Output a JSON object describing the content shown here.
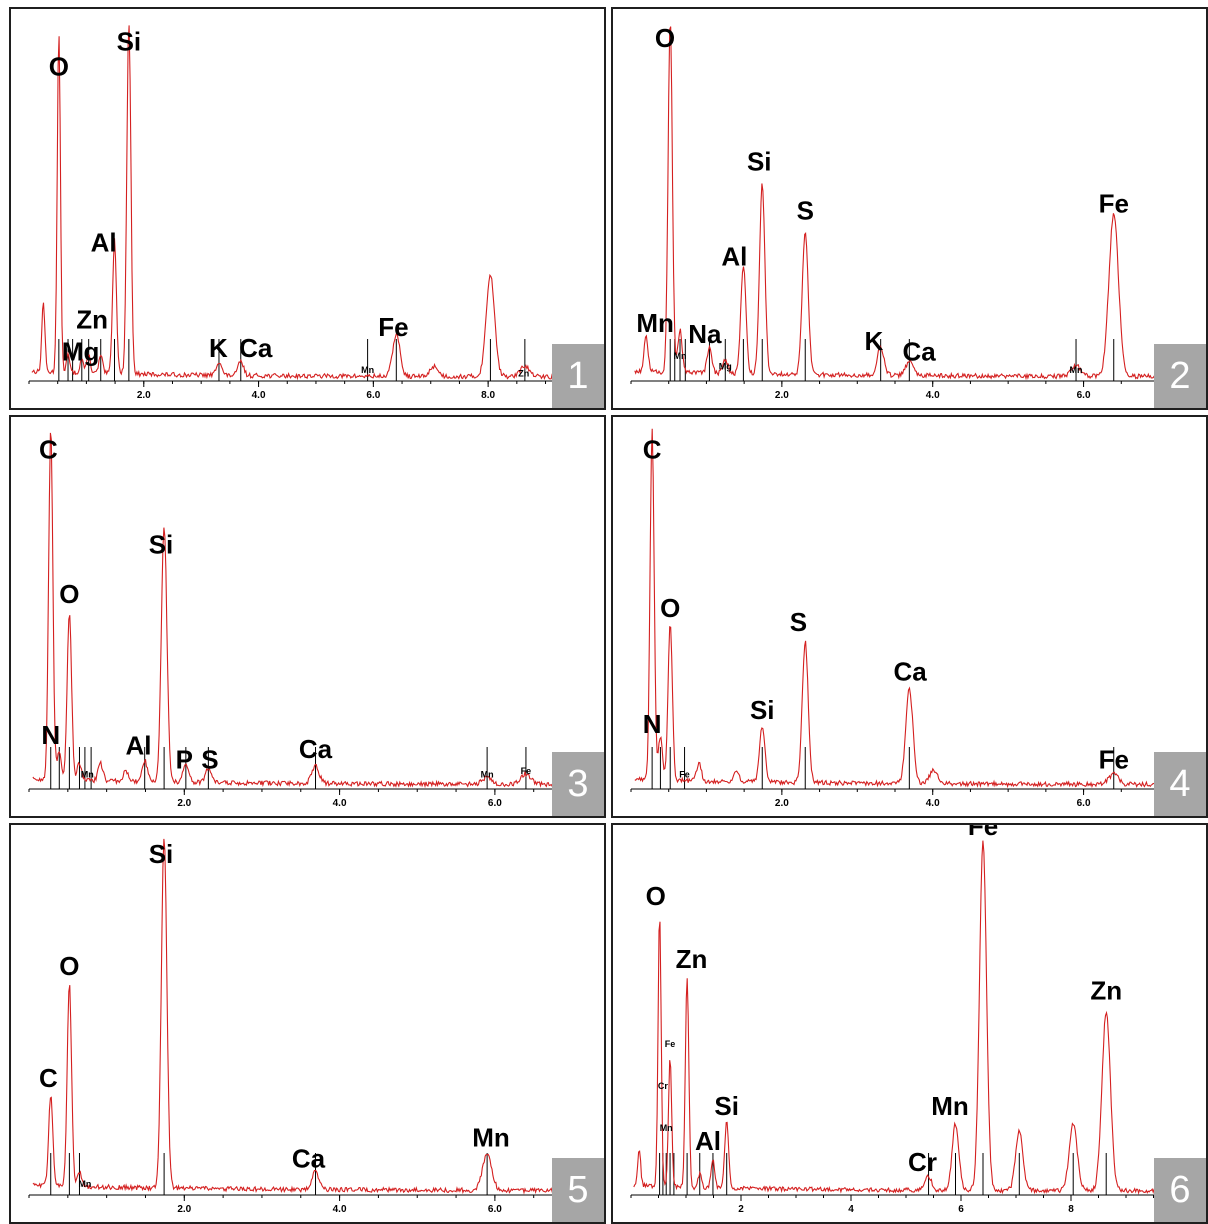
{
  "panels": [
    {
      "number": "1"
    },
    {
      "number": "2"
    },
    {
      "number": "3"
    },
    {
      "number": "4"
    },
    {
      "number": "5"
    },
    {
      "number": "6"
    }
  ],
  "colors": {
    "spectrum": "#d42020",
    "axis": "#000000",
    "marker": "#000000",
    "badge_bg": "#a6a6a6",
    "badge_text": "#ffffff",
    "border": "#1f1f1f"
  },
  "chart_data": [
    {
      "type": "line",
      "xlim": [
        0,
        9.2
      ],
      "ylim": [
        0,
        100
      ],
      "xticks": [
        2,
        4,
        6,
        8
      ],
      "xticklabels": [
        "2.0",
        "4.0",
        "6.0",
        "8.0"
      ],
      "peaks": [
        [
          0.25,
          20
        ],
        [
          0.52,
          96
        ],
        [
          0.68,
          5
        ],
        [
          0.92,
          4
        ],
        [
          1.04,
          5
        ],
        [
          1.25,
          5
        ],
        [
          1.49,
          38
        ],
        [
          1.74,
          100
        ],
        [
          3.31,
          4
        ],
        [
          3.69,
          4
        ],
        [
          6.4,
          12
        ],
        [
          7.06,
          3
        ],
        [
          8.04,
          29
        ],
        [
          8.64,
          3
        ]
      ],
      "labels": [
        {
          "text": "O",
          "x": 0.52,
          "y": 86
        },
        {
          "text": "Si",
          "x": 1.74,
          "y": 93
        },
        {
          "text": "Al",
          "x": 1.3,
          "y": 36
        },
        {
          "text": "Zn",
          "x": 1.1,
          "y": 14
        },
        {
          "text": "Mg",
          "x": 0.9,
          "y": 5
        },
        {
          "text": "K",
          "x": 3.3,
          "y": 6
        },
        {
          "text": "Ca",
          "x": 3.95,
          "y": 6
        },
        {
          "text": "Fe",
          "x": 6.35,
          "y": 12
        },
        {
          "text": "Mn",
          "x": 5.9,
          "y": 2,
          "small": true
        },
        {
          "text": "Zn",
          "x": 8.62,
          "y": 1,
          "small": true
        }
      ],
      "markers": [
        0.52,
        0.68,
        0.76,
        0.92,
        1.04,
        1.25,
        1.49,
        1.74,
        3.31,
        3.69,
        5.9,
        6.4,
        8.04,
        8.64
      ]
    },
    {
      "type": "line",
      "xlim": [
        0,
        7.0
      ],
      "ylim": [
        0,
        100
      ],
      "xticks": [
        2,
        4,
        6
      ],
      "xticklabels": [
        "2.0",
        "4.0",
        "6.0"
      ],
      "peaks": [
        [
          0.2,
          10
        ],
        [
          0.52,
          100
        ],
        [
          0.65,
          12
        ],
        [
          1.04,
          7
        ],
        [
          1.25,
          4
        ],
        [
          1.49,
          31
        ],
        [
          1.74,
          54
        ],
        [
          2.31,
          41
        ],
        [
          3.31,
          8
        ],
        [
          3.69,
          4
        ],
        [
          5.9,
          3
        ],
        [
          6.4,
          46
        ]
      ],
      "labels": [
        {
          "text": "O",
          "x": 0.45,
          "y": 94
        },
        {
          "text": "Si",
          "x": 1.7,
          "y": 59
        },
        {
          "text": "S",
          "x": 2.31,
          "y": 45
        },
        {
          "text": "Fe",
          "x": 6.4,
          "y": 47
        },
        {
          "text": "Al",
          "x": 1.37,
          "y": 32
        },
        {
          "text": "Mn",
          "x": 0.32,
          "y": 13
        },
        {
          "text": "Na",
          "x": 0.98,
          "y": 10
        },
        {
          "text": "K",
          "x": 3.22,
          "y": 8
        },
        {
          "text": "Ca",
          "x": 3.82,
          "y": 5
        },
        {
          "text": "Mn",
          "x": 0.65,
          "y": 6,
          "small": true
        },
        {
          "text": "Mg",
          "x": 1.25,
          "y": 3,
          "small": true
        },
        {
          "text": "Mn",
          "x": 5.9,
          "y": 2,
          "small": true
        }
      ],
      "markers": [
        0.52,
        0.58,
        0.65,
        0.72,
        1.04,
        1.25,
        1.49,
        1.74,
        2.31,
        3.31,
        3.69,
        5.9,
        6.4
      ]
    },
    {
      "type": "line",
      "xlim": [
        0,
        6.8
      ],
      "ylim": [
        0,
        100
      ],
      "xticks": [
        2,
        4,
        6
      ],
      "xticklabels": [
        "2.0",
        "4.0",
        "6.0"
      ],
      "peaks": [
        [
          0.28,
          100
        ],
        [
          0.39,
          8
        ],
        [
          0.52,
          48
        ],
        [
          0.65,
          5
        ],
        [
          0.92,
          5
        ],
        [
          1.25,
          3
        ],
        [
          1.49,
          6
        ],
        [
          1.74,
          73
        ],
        [
          2.02,
          5
        ],
        [
          2.31,
          4
        ],
        [
          3.69,
          5
        ],
        [
          5.9,
          2
        ],
        [
          6.4,
          3
        ]
      ],
      "labels": [
        {
          "text": "C",
          "x": 0.25,
          "y": 93
        },
        {
          "text": "Si",
          "x": 1.7,
          "y": 66
        },
        {
          "text": "O",
          "x": 0.52,
          "y": 52
        },
        {
          "text": "N",
          "x": 0.28,
          "y": 12
        },
        {
          "text": "Al",
          "x": 1.41,
          "y": 9
        },
        {
          "text": "P",
          "x": 2.0,
          "y": 5
        },
        {
          "text": "S",
          "x": 2.33,
          "y": 5
        },
        {
          "text": "Ca",
          "x": 3.69,
          "y": 8
        },
        {
          "text": "Mn",
          "x": 0.75,
          "y": 3,
          "small": true
        },
        {
          "text": "Mn",
          "x": 5.9,
          "y": 3,
          "small": true
        },
        {
          "text": "Fe",
          "x": 6.4,
          "y": 4,
          "small": true
        }
      ],
      "markers": [
        0.28,
        0.39,
        0.52,
        0.65,
        0.72,
        0.8,
        1.49,
        1.74,
        2.02,
        2.31,
        3.69,
        5.9,
        6.4
      ]
    },
    {
      "type": "line",
      "xlim": [
        0,
        7.0
      ],
      "ylim": [
        0,
        100
      ],
      "xticks": [
        2,
        4,
        6
      ],
      "xticklabels": [
        "2.0",
        "4.0",
        "6.0"
      ],
      "peaks": [
        [
          0.28,
          100
        ],
        [
          0.39,
          12
        ],
        [
          0.52,
          45
        ],
        [
          0.9,
          5
        ],
        [
          1.4,
          3
        ],
        [
          1.74,
          16
        ],
        [
          2.31,
          40
        ],
        [
          3.69,
          27
        ],
        [
          4.01,
          4
        ],
        [
          6.4,
          3
        ]
      ],
      "labels": [
        {
          "text": "C",
          "x": 0.28,
          "y": 93
        },
        {
          "text": "O",
          "x": 0.52,
          "y": 48
        },
        {
          "text": "S",
          "x": 2.22,
          "y": 44
        },
        {
          "text": "Ca",
          "x": 3.7,
          "y": 30
        },
        {
          "text": "Si",
          "x": 1.74,
          "y": 19
        },
        {
          "text": "N",
          "x": 0.28,
          "y": 15
        },
        {
          "text": "Fe",
          "x": 6.4,
          "y": 5
        },
        {
          "text": "Fe",
          "x": 0.71,
          "y": 3,
          "small": true
        }
      ],
      "markers": [
        0.28,
        0.39,
        0.52,
        0.71,
        1.74,
        2.31,
        3.69,
        6.4
      ]
    },
    {
      "type": "line",
      "xlim": [
        0,
        6.8
      ],
      "ylim": [
        0,
        100
      ],
      "xticks": [
        2,
        4,
        6
      ],
      "xticklabels": [
        "2.0",
        "4.0",
        "6.0"
      ],
      "peaks": [
        [
          0.28,
          26
        ],
        [
          0.52,
          58
        ],
        [
          0.65,
          4
        ],
        [
          1.74,
          100
        ],
        [
          3.69,
          5
        ],
        [
          5.9,
          10
        ]
      ],
      "labels": [
        {
          "text": "Si",
          "x": 1.7,
          "y": 94
        },
        {
          "text": "O",
          "x": 0.52,
          "y": 62
        },
        {
          "text": "C",
          "x": 0.25,
          "y": 30
        },
        {
          "text": "Ca",
          "x": 3.6,
          "y": 7
        },
        {
          "text": "Mn",
          "x": 5.95,
          "y": 13
        },
        {
          "text": "Mn",
          "x": 0.72,
          "y": 2,
          "small": true
        }
      ],
      "markers": [
        0.28,
        0.52,
        0.65,
        1.74,
        3.69,
        5.9
      ]
    },
    {
      "type": "line",
      "xlim": [
        0,
        9.6
      ],
      "ylim": [
        0,
        100
      ],
      "xticks": [
        2,
        4,
        6,
        8
      ],
      "xticklabels": [
        "2",
        "4",
        "6",
        "8"
      ],
      "peaks": [
        [
          0.15,
          10
        ],
        [
          0.52,
          78
        ],
        [
          0.71,
          37
        ],
        [
          1.02,
          60
        ],
        [
          1.25,
          4
        ],
        [
          1.49,
          8
        ],
        [
          1.74,
          19
        ],
        [
          5.41,
          4
        ],
        [
          5.9,
          19
        ],
        [
          6.4,
          100
        ],
        [
          7.06,
          17
        ],
        [
          8.04,
          19
        ],
        [
          8.64,
          51
        ]
      ],
      "labels": [
        {
          "text": "Fe",
          "x": 6.4,
          "y": 102
        },
        {
          "text": "O",
          "x": 0.45,
          "y": 82
        },
        {
          "text": "Zn",
          "x": 1.1,
          "y": 64
        },
        {
          "text": "Zn",
          "x": 8.64,
          "y": 55
        },
        {
          "text": "Si",
          "x": 1.74,
          "y": 22
        },
        {
          "text": "Mn",
          "x": 5.8,
          "y": 22
        },
        {
          "text": "Al",
          "x": 1.4,
          "y": 12
        },
        {
          "text": "Cr",
          "x": 5.3,
          "y": 6
        },
        {
          "text": "Fe",
          "x": 0.71,
          "y": 42,
          "small": true
        },
        {
          "text": "Cr",
          "x": 0.58,
          "y": 30,
          "small": true
        },
        {
          "text": "Mn",
          "x": 0.64,
          "y": 18,
          "small": true
        }
      ],
      "markers": [
        0.52,
        0.58,
        0.64,
        0.71,
        0.78,
        1.02,
        1.25,
        1.49,
        1.74,
        5.41,
        5.9,
        6.4,
        7.06,
        8.04,
        8.64
      ]
    }
  ]
}
